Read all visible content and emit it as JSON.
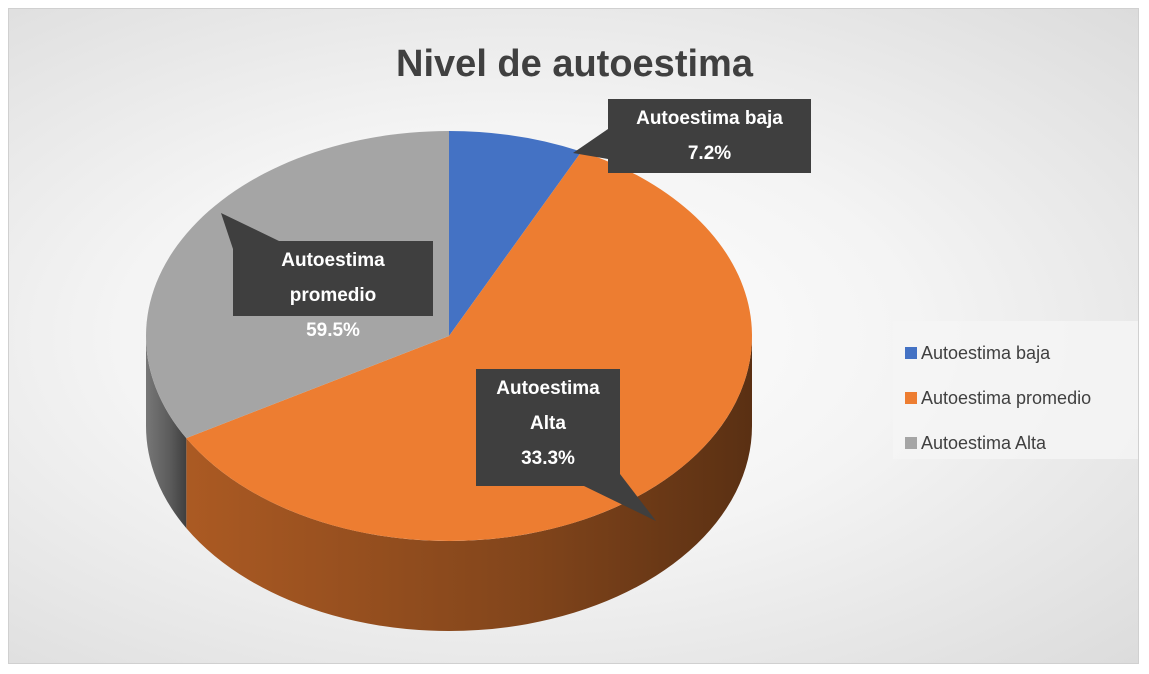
{
  "chart_data": {
    "type": "pie",
    "title": "Nivel de autoestima",
    "categories": [
      "Autoestima baja",
      "Autoestima promedio",
      "Autoestima Alta"
    ],
    "values": [
      7.2,
      59.5,
      33.3
    ],
    "value_labels": [
      "7.2%",
      "59.5%",
      "33.3%"
    ],
    "colors": [
      "#4472c4",
      "#ed7d31",
      "#a5a5a5"
    ],
    "legend": "right"
  }
}
